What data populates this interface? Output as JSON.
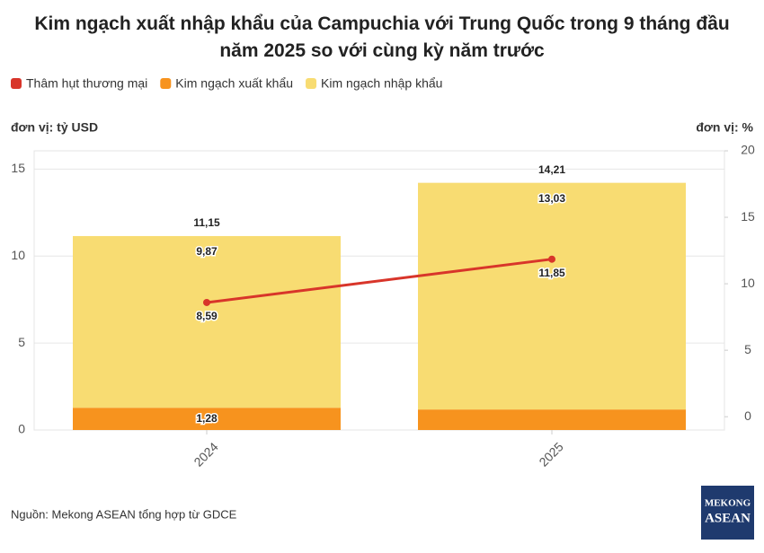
{
  "chart_data": {
    "type": "bar",
    "stacked": true,
    "title": "Kim ngạch xuất nhập khẩu của Campuchia với Trung Quốc trong 9 tháng đầu năm 2025 so với cùng kỳ năm trước",
    "y_label": "đơn vị: tỷ USD",
    "y2_label": "đơn vị: %",
    "categories": [
      "2024",
      "2025"
    ],
    "series": [
      {
        "name": "Thâm hụt thương mại",
        "type": "line",
        "axis": "y2",
        "color": "#d8352a",
        "values": [
          8.59,
          11.85
        ],
        "value_labels": [
          "8,59",
          "11,85"
        ]
      },
      {
        "name": "Kim ngạch xuất khẩu",
        "type": "bar",
        "color": "#f7931e",
        "values": [
          1.28,
          1.18
        ],
        "value_labels": [
          "1,28",
          null
        ]
      },
      {
        "name": "Kim ngạch nhập khẩu",
        "type": "bar",
        "color": "#f8dc72",
        "values": [
          9.87,
          13.03
        ],
        "value_labels": [
          "9,87",
          "13,03"
        ]
      }
    ],
    "totals": {
      "values": [
        11.15,
        14.21
      ],
      "value_labels": [
        "11,15",
        "14,21"
      ]
    },
    "ylim": [
      0,
      16.05
    ],
    "yticks": [
      0,
      5,
      10,
      15
    ],
    "y2lim": [
      -1,
      20
    ],
    "y2ticks": [
      0,
      5,
      10,
      15,
      20
    ],
    "grid": true,
    "legend": "top-left"
  },
  "source": "Nguồn: Mekong ASEAN tổng hợp từ GDCE",
  "logo": {
    "top": "MEKONG",
    "bottom": "ASEAN"
  }
}
